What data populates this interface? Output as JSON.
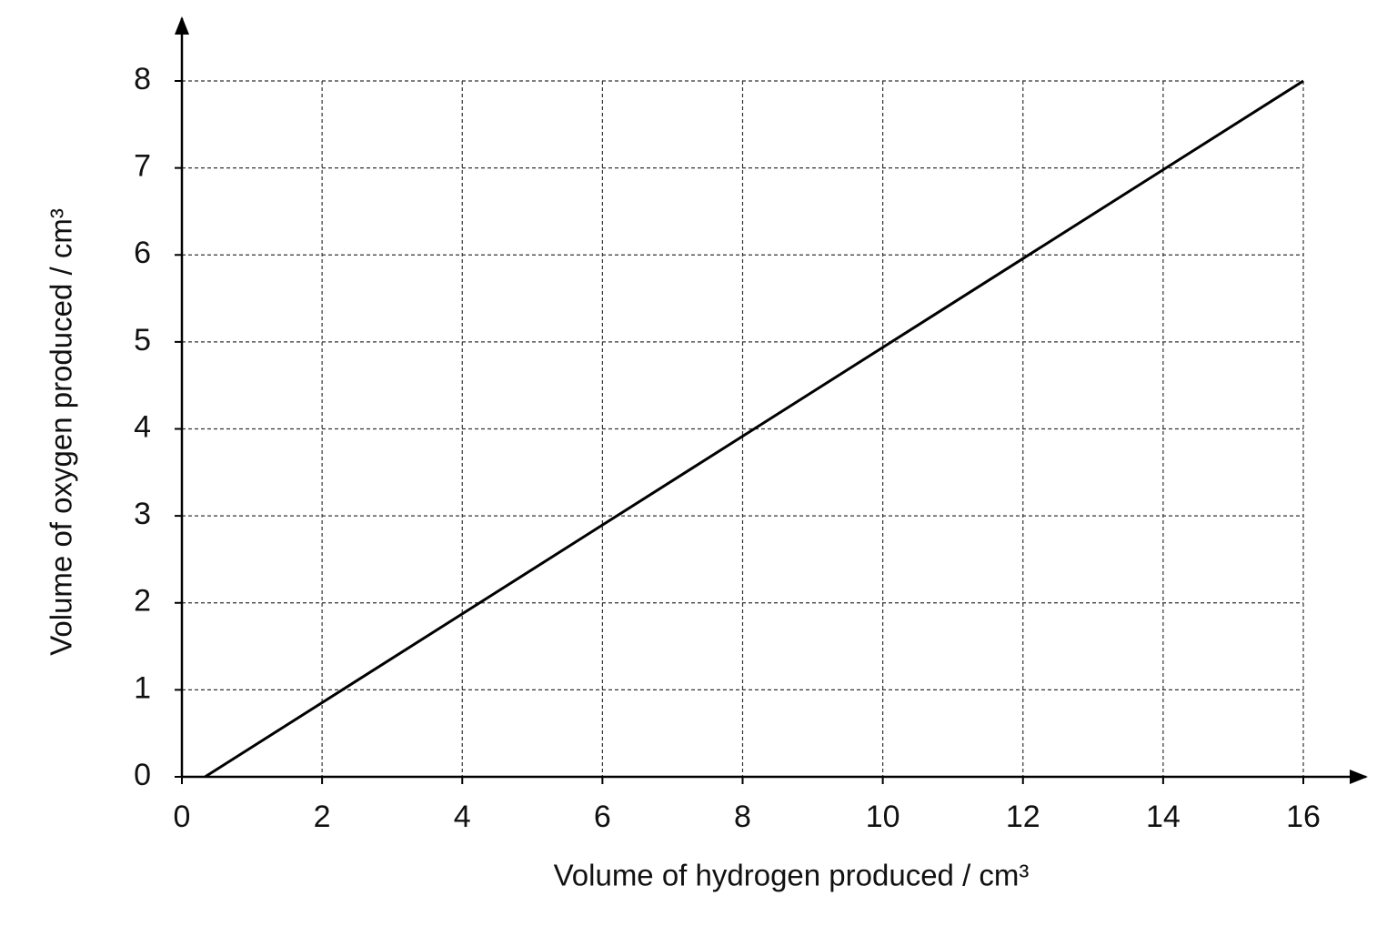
{
  "chart_data": {
    "type": "line",
    "x_label": "Volume of hydrogen produced / cm³",
    "y_label": "Volume of oxygen produced / cm³",
    "x": [
      0.33,
      16
    ],
    "series": [
      {
        "color": "#000000",
        "values": [
          0,
          8
        ]
      }
    ],
    "xlim": [
      0,
      16
    ],
    "ylim": [
      0,
      8
    ],
    "xticks": [
      0,
      2,
      4,
      6,
      8,
      10,
      12,
      14,
      16
    ],
    "yticks": [
      0,
      1,
      2,
      3,
      4,
      5,
      6,
      7,
      8
    ],
    "grid": true
  }
}
